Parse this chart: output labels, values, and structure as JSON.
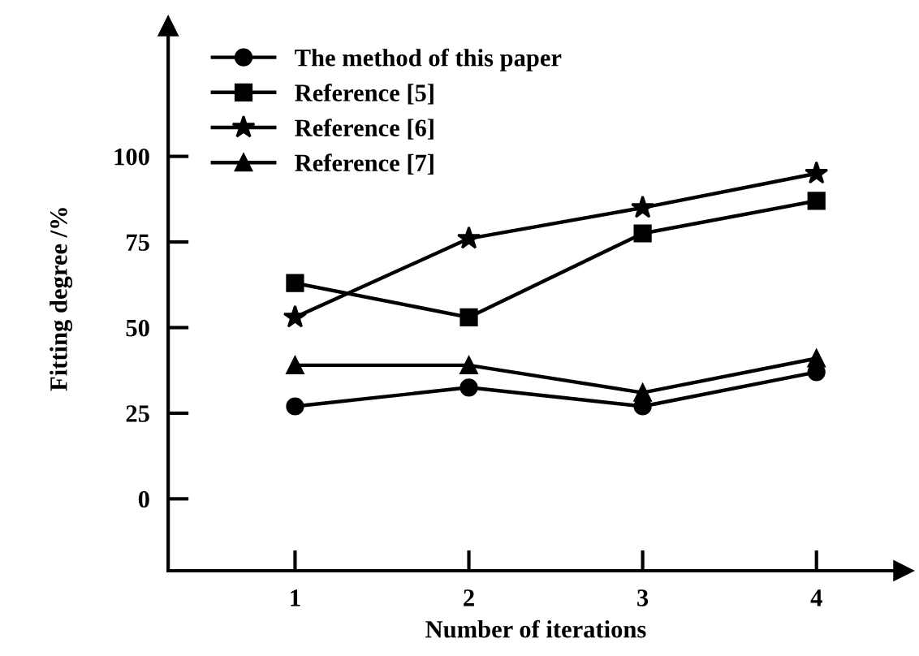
{
  "chart_data": {
    "type": "line",
    "xlabel": "Number of iterations",
    "ylabel": "Fitting degree /%",
    "x": [
      1,
      2,
      3,
      4
    ],
    "series": [
      {
        "name": "The method of this paper",
        "color": "#000000",
        "marker": "circle",
        "values": [
          27,
          32.5,
          27,
          37
        ]
      },
      {
        "name": "Reference [5]",
        "color": "#000000",
        "marker": "square",
        "values": [
          63,
          53,
          77.5,
          87
        ]
      },
      {
        "name": "Reference [6]",
        "color": "#000000",
        "marker": "star",
        "values": [
          53,
          76,
          85,
          95
        ]
      },
      {
        "name": "Reference [7]",
        "color": "#000000",
        "marker": "triangle",
        "values": [
          39,
          39,
          31,
          41
        ]
      }
    ],
    "xlim": [
      0.27,
      4.5
    ],
    "ylim": [
      -21,
      138
    ],
    "xticks": [
      1,
      2,
      3,
      4
    ],
    "yticks": [
      0,
      25,
      50,
      75,
      100
    ],
    "grid": false,
    "legend": "top left",
    "line_style": "solid"
  }
}
